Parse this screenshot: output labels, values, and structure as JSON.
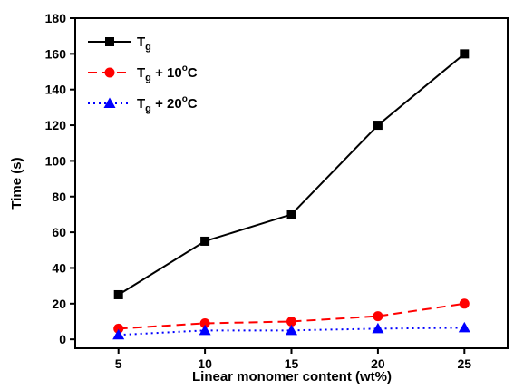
{
  "chart_data": {
    "type": "line",
    "xlabel": "Linear monomer content (wt%)",
    "ylabel": "Time (s)",
    "xlim": [
      2.5,
      27.5
    ],
    "ylim": [
      -5,
      180
    ],
    "xticks": [
      5,
      10,
      15,
      20,
      25
    ],
    "yticks": [
      0,
      20,
      40,
      60,
      80,
      100,
      120,
      140,
      160,
      180
    ],
    "x": [
      5,
      10,
      15,
      20,
      25
    ],
    "grid": false,
    "legend_position": "top-left",
    "series": [
      {
        "name": "Tg",
        "legend_parts": {
          "main": "T",
          "sub": "g",
          "rest": ""
        },
        "values": [
          25,
          55,
          70,
          120,
          160
        ],
        "color": "#000000",
        "marker": "square",
        "dash": "solid"
      },
      {
        "name": "Tg + 10°C",
        "legend_parts": {
          "main": "T",
          "sub": "g",
          "rest": " + 10",
          "sup": "o",
          "tail": "C"
        },
        "values": [
          6,
          9,
          10,
          13,
          20
        ],
        "color": "#ff0000",
        "marker": "circle",
        "dash": "dashed"
      },
      {
        "name": "Tg + 20°C",
        "legend_parts": {
          "main": "T",
          "sub": "g",
          "rest": " + 20",
          "sup": "o",
          "tail": "C"
        },
        "values": [
          2.5,
          5,
          5,
          6,
          6.5
        ],
        "color": "#0000ff",
        "marker": "triangle",
        "dash": "dotted"
      }
    ]
  }
}
